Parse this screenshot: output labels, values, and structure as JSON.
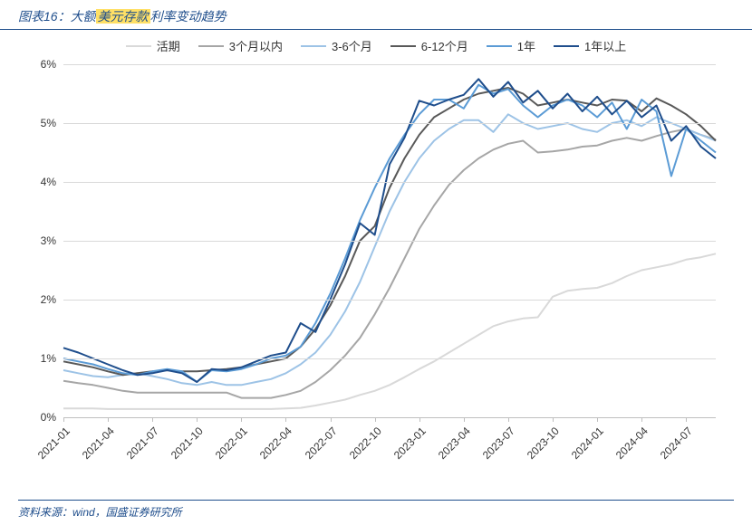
{
  "title_prefix": "图表16：大额",
  "title_highlight": "美元存款",
  "title_suffix": "利率变动趋势",
  "source": "资料来源：wind，国盛证券研究所",
  "chart": {
    "type": "line",
    "background_color": "#ffffff",
    "grid_color": "#d9d9d9",
    "axis_color": "#bfbfbf",
    "label_fontsize": 12,
    "legend_fontsize": 13,
    "title_fontsize": 14,
    "ylim": [
      0,
      6
    ],
    "ytick_step": 1,
    "ytick_suffix": "%",
    "x_labels": [
      "2021-01",
      "2021-04",
      "2021-07",
      "2021-10",
      "2022-01",
      "2022-04",
      "2022-07",
      "2022-10",
      "2023-01",
      "2023-04",
      "2023-07",
      "2023-10",
      "2024-01",
      "2024-04",
      "2024-07"
    ],
    "x_label_stride": 3,
    "n_points": 45,
    "series": [
      {
        "name": "活期",
        "color": "#d9d9d9",
        "width": 2,
        "values": [
          0.15,
          0.15,
          0.15,
          0.14,
          0.14,
          0.14,
          0.14,
          0.14,
          0.14,
          0.14,
          0.14,
          0.14,
          0.14,
          0.14,
          0.14,
          0.15,
          0.16,
          0.2,
          0.25,
          0.3,
          0.38,
          0.45,
          0.55,
          0.68,
          0.82,
          0.95,
          1.1,
          1.25,
          1.4,
          1.55,
          1.63,
          1.68,
          1.7,
          2.05,
          2.15,
          2.18,
          2.2,
          2.28,
          2.4,
          2.5,
          2.55,
          2.6,
          2.68,
          2.72,
          2.78
        ]
      },
      {
        "name": "3个月以内",
        "color": "#a6a6a6",
        "width": 2,
        "values": [
          0.62,
          0.58,
          0.55,
          0.5,
          0.45,
          0.42,
          0.42,
          0.42,
          0.42,
          0.42,
          0.42,
          0.42,
          0.33,
          0.33,
          0.33,
          0.38,
          0.45,
          0.6,
          0.8,
          1.05,
          1.35,
          1.75,
          2.2,
          2.7,
          3.2,
          3.6,
          3.95,
          4.2,
          4.4,
          4.55,
          4.65,
          4.7,
          4.5,
          4.52,
          4.55,
          4.6,
          4.62,
          4.7,
          4.75,
          4.7,
          4.78,
          4.85,
          4.9,
          4.8,
          4.72
        ]
      },
      {
        "name": "3-6个月",
        "color": "#9dc3e6",
        "width": 2,
        "values": [
          0.8,
          0.75,
          0.7,
          0.68,
          0.72,
          0.75,
          0.7,
          0.65,
          0.58,
          0.55,
          0.6,
          0.55,
          0.55,
          0.6,
          0.65,
          0.75,
          0.9,
          1.1,
          1.4,
          1.8,
          2.3,
          2.9,
          3.5,
          4.0,
          4.4,
          4.7,
          4.9,
          5.05,
          5.05,
          4.85,
          5.15,
          5.0,
          4.9,
          4.95,
          5.0,
          4.9,
          4.85,
          5.0,
          5.05,
          4.95,
          5.1,
          5.0,
          4.9,
          4.8,
          4.7
        ]
      },
      {
        "name": "6-12个月",
        "color": "#595959",
        "width": 2,
        "values": [
          0.95,
          0.9,
          0.85,
          0.78,
          0.72,
          0.75,
          0.78,
          0.8,
          0.78,
          0.78,
          0.8,
          0.82,
          0.85,
          0.9,
          0.95,
          1.0,
          1.2,
          1.5,
          1.9,
          2.4,
          3.0,
          3.25,
          3.9,
          4.4,
          4.8,
          5.1,
          5.25,
          5.4,
          5.5,
          5.55,
          5.6,
          5.5,
          5.3,
          5.35,
          5.4,
          5.35,
          5.3,
          5.4,
          5.38,
          5.2,
          5.42,
          5.3,
          5.15,
          4.95,
          4.7
        ]
      },
      {
        "name": "1年",
        "color": "#5b9bd5",
        "width": 2,
        "values": [
          1.0,
          0.95,
          0.9,
          0.82,
          0.75,
          0.72,
          0.78,
          0.82,
          0.78,
          0.6,
          0.8,
          0.78,
          0.82,
          0.9,
          1.0,
          1.05,
          1.2,
          1.6,
          2.1,
          2.7,
          3.35,
          3.9,
          4.4,
          4.8,
          5.15,
          5.4,
          5.4,
          5.25,
          5.65,
          5.5,
          5.58,
          5.3,
          5.1,
          5.3,
          5.4,
          5.3,
          5.1,
          5.35,
          4.9,
          5.4,
          5.2,
          4.1,
          4.9,
          4.7,
          4.5
        ]
      },
      {
        "name": "1年以上",
        "color": "#1f4e8c",
        "width": 2,
        "values": [
          1.18,
          1.1,
          1.0,
          0.9,
          0.8,
          0.72,
          0.75,
          0.8,
          0.75,
          0.6,
          0.82,
          0.8,
          0.85,
          0.95,
          1.05,
          1.1,
          1.6,
          1.45,
          2.0,
          2.6,
          3.3,
          3.1,
          4.3,
          4.75,
          5.38,
          5.3,
          5.4,
          5.48,
          5.75,
          5.45,
          5.7,
          5.35,
          5.55,
          5.25,
          5.5,
          5.2,
          5.45,
          5.15,
          5.38,
          5.1,
          5.3,
          4.7,
          4.95,
          4.6,
          4.4
        ]
      }
    ]
  }
}
